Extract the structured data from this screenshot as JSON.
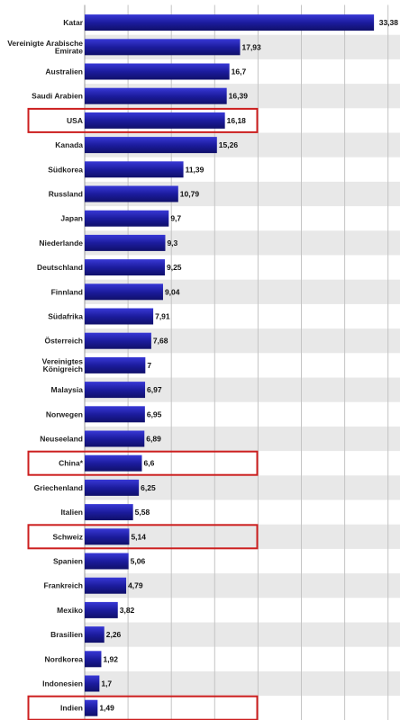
{
  "chart_data": {
    "type": "bar",
    "orientation": "horizontal",
    "categories": [
      "Katar",
      [
        "Vereinigte Arabische",
        "Emirate"
      ],
      "Australien",
      "Saudi Arabien",
      "USA",
      "Kanada",
      "Südkorea",
      "Russland",
      "Japan",
      "Niederlande",
      "Deutschland",
      "Finnland",
      "Südafrika",
      "Österreich",
      [
        "Vereinigtes",
        "Königreich"
      ],
      "Malaysia",
      "Norwegen",
      "Neuseeland",
      "China*",
      "Griechenland",
      "Italien",
      "Schweiz",
      "Spanien",
      "Frankreich",
      "Mexiko",
      "Brasilien",
      "Nordkorea",
      "Indonesien",
      "Indien"
    ],
    "values": [
      33.38,
      17.93,
      16.7,
      16.39,
      16.18,
      15.26,
      11.39,
      10.79,
      9.7,
      9.3,
      9.25,
      9.04,
      7.91,
      7.68,
      7,
      6.97,
      6.95,
      6.89,
      6.6,
      6.25,
      5.58,
      5.14,
      5.06,
      4.79,
      3.82,
      2.26,
      1.92,
      1.7,
      1.49
    ],
    "value_labels": [
      "33,38",
      "17,93",
      "16,7",
      "16,39",
      "16,18",
      "15,26",
      "11,39",
      "10,79",
      "9,7",
      "9,3",
      "9,25",
      "9,04",
      "7,91",
      "7,68",
      "7",
      "6,97",
      "6,95",
      "6,89",
      "6,6",
      "6,25",
      "5,58",
      "5,14",
      "5,06",
      "4,79",
      "3,82",
      "2,26",
      "1,92",
      "1,7",
      "1,49"
    ],
    "highlighted": [
      "USA",
      "China*",
      "Schweiz",
      "Indien"
    ],
    "title": "",
    "xlabel": "",
    "ylabel": "",
    "xlim": [
      0,
      35
    ],
    "grid": true,
    "legend": "none",
    "colors": {
      "bar_dark": "#14147a",
      "bar_light": "#3838d6",
      "stripe": "#e8e8e8",
      "grid": "#c4c4c4",
      "highlight": "#cc1f1f"
    }
  }
}
